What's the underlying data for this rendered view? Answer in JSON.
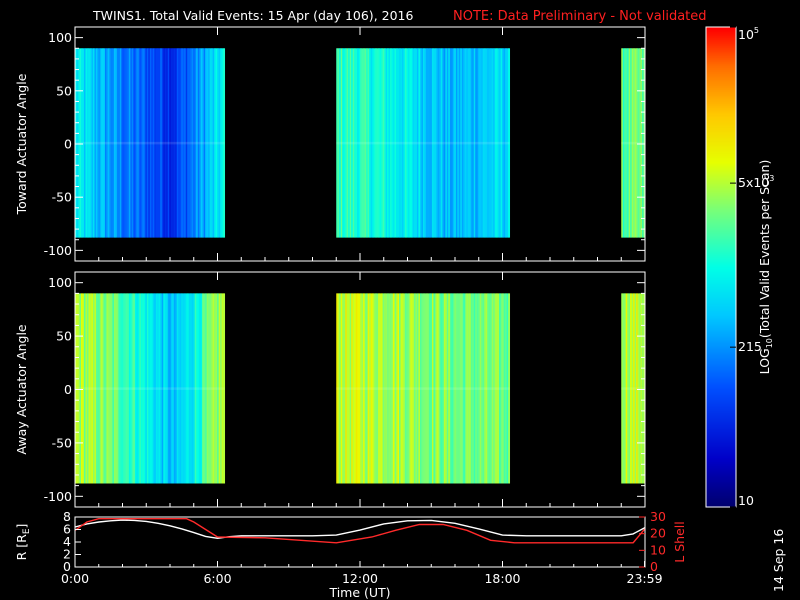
{
  "title": "TWINS1. Total Valid Events: 15 Apr (day 106), 2016",
  "note": "NOTE: Data Preliminary - Not validated",
  "date_stamp": "14 Sep 16",
  "chart_data": [
    {
      "type": "heatmap",
      "ylabel": "Toward Actuator Angle",
      "ylim": [
        -110,
        110
      ],
      "yticks": [
        100,
        50,
        0,
        -50,
        -100
      ],
      "angle_range": [
        -88,
        90
      ],
      "segments": [
        {
          "start_hour": 0.0,
          "end_hour": 6.3,
          "log_levels": [
            2.85,
            2.2,
            1.8,
            2.9
          ]
        },
        {
          "start_hour": 11.0,
          "end_hour": 18.3,
          "log_levels": [
            3.2,
            2.95,
            2.5,
            2.75
          ]
        },
        {
          "start_hour": 23.0,
          "end_hour": 24.0,
          "log_levels": [
            3.35
          ]
        }
      ]
    },
    {
      "type": "heatmap",
      "ylabel": "Away Actuator Angle",
      "ylim": [
        -110,
        110
      ],
      "yticks": [
        100,
        50,
        0,
        -50,
        -100
      ],
      "angle_range": [
        -88,
        90
      ],
      "segments": [
        {
          "start_hour": 0.0,
          "end_hour": 6.3,
          "log_levels": [
            3.7,
            3.3,
            2.5,
            3.7
          ]
        },
        {
          "start_hour": 11.0,
          "end_hour": 18.3,
          "log_levels": [
            3.8,
            3.7,
            3.45,
            3.4
          ]
        },
        {
          "start_hour": 23.0,
          "end_hour": 24.0,
          "log_levels": [
            3.75
          ]
        }
      ]
    },
    {
      "type": "line",
      "ylabel": "R [R",
      "ylabel_sub": "E",
      "ylabel_close": "]",
      "y2label": "L Shell",
      "xlabel": "Time (UT)",
      "xticks": [
        "0:00",
        "6:00",
        "12:00",
        "18:00",
        "23:59"
      ],
      "xtick_hours": [
        0,
        6,
        12,
        18,
        23.98
      ],
      "xlim": [
        0,
        24
      ],
      "ylim": [
        0,
        8
      ],
      "y2lim": [
        0,
        30
      ],
      "yticks": [
        "8",
        "6",
        "4",
        "2",
        "0"
      ],
      "y2ticks": [
        "30",
        "20",
        "10",
        "0"
      ],
      "series": [
        {
          "color": "#ffffff",
          "x": [
            0,
            0.5,
            1,
            1.5,
            2,
            2.5,
            3,
            3.5,
            4,
            4.5,
            5,
            5.5,
            6,
            6.5,
            7,
            8,
            9,
            10,
            11,
            12,
            13,
            14,
            15,
            16,
            17,
            18,
            19,
            20,
            21,
            22,
            23,
            23.5,
            24
          ],
          "y": [
            6.4,
            6.9,
            7.2,
            7.4,
            7.5,
            7.45,
            7.3,
            7.0,
            6.6,
            6.1,
            5.5,
            4.9,
            4.6,
            4.85,
            5.0,
            5.0,
            5.0,
            5.0,
            5.1,
            5.9,
            6.9,
            7.4,
            7.45,
            7.0,
            6.1,
            5.1,
            5.0,
            5.0,
            5.0,
            5.0,
            5.0,
            5.3,
            6.3
          ]
        },
        {
          "color": "#ff2a2a",
          "axis": "y2",
          "x": [
            0,
            0.5,
            1,
            4.7,
            5.0,
            6.0,
            8.0,
            11.0,
            12.5,
            13.5,
            14.5,
            15.5,
            16.5,
            17.5,
            18.5,
            23.5,
            24
          ],
          "y": [
            22,
            27,
            29,
            29,
            27,
            18,
            17.5,
            14.5,
            18,
            22,
            25.5,
            25.5,
            22,
            16,
            14.5,
            14.5,
            23
          ]
        }
      ]
    }
  ],
  "colorbar": {
    "label": "LOG",
    "label_sub": "10",
    "label_rest": "(Total Valid Events per Scan)",
    "ticks": [
      {
        "text": "10",
        "log": 1.0
      },
      {
        "text": "215",
        "log": 2.332
      },
      {
        "text": "5x10",
        "sup": "3",
        "log": 3.699
      },
      {
        "text": "10",
        "sup": "5",
        "log": 5.0
      }
    ],
    "range": [
      1,
      5
    ]
  }
}
